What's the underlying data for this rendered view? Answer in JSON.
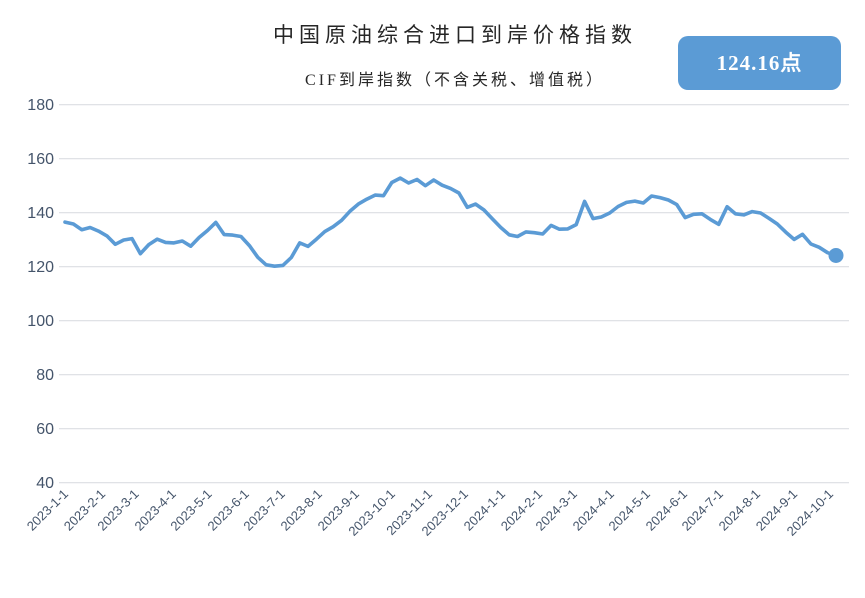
{
  "page": {
    "background": "#FFFFFF"
  },
  "chart_data": {
    "type": "line",
    "title": "中国原油综合进口到岸价格指数",
    "subtitle": "CIF到岸指数（不含关税、增值税）",
    "badge": {
      "label": "124.16点",
      "bg": "#5B9BD5",
      "text_color": "#FFFFFF"
    },
    "ylim": [
      40,
      180
    ],
    "y_ticks": [
      180,
      160,
      140,
      120,
      100,
      80,
      60,
      40
    ],
    "x_ticks": [
      "2023-1-1",
      "2023-2-1",
      "2023-3-1",
      "2023-4-1",
      "2023-5-1",
      "2023-6-1",
      "2023-7-1",
      "2023-8-1",
      "2023-9-1",
      "2023-10-1",
      "2023-11-1",
      "2023-12-1",
      "2024-1-1",
      "2024-2-1",
      "2024-3-1",
      "2024-4-1",
      "2024-5-1",
      "2024-6-1",
      "2024-7-1",
      "2024-8-1",
      "2024-9-1",
      "2024-10-1"
    ],
    "grid": "horizontal",
    "legend": "none",
    "colors": {
      "line": "#5B9BD5",
      "grid": "#DBDEE3",
      "tick_label": "#44546A",
      "title_text": "#262626"
    },
    "series": [
      {
        "name": "中国原油综合进口到岸价格指数",
        "color": "#5B9BD5",
        "start_date": "2023-01-01",
        "interval_days": 7,
        "end_marker": true,
        "last_value": 124.16,
        "values": [
          136.5,
          135.8,
          133.7,
          134.5,
          133.2,
          131.4,
          128.3,
          129.9,
          130.4,
          124.8,
          128.2,
          130.2,
          129.0,
          128.8,
          129.5,
          127.6,
          130.8,
          133.4,
          136.4,
          131.9,
          131.7,
          131.2,
          127.8,
          123.5,
          120.7,
          120.2,
          120.5,
          123.4,
          128.8,
          127.5,
          130.2,
          133.0,
          134.8,
          137.2,
          140.5,
          143.2,
          145.0,
          146.5,
          146.3,
          151.2,
          152.8,
          151.0,
          152.3,
          150.0,
          152.1,
          150.2,
          149.0,
          147.3,
          142.0,
          143.2,
          141.0,
          137.7,
          134.5,
          131.8,
          131.2,
          132.9,
          132.6,
          132.1,
          135.3,
          133.9,
          134.0,
          135.6,
          144.2,
          137.8,
          138.4,
          139.9,
          142.3,
          143.8,
          144.3,
          143.6,
          146.2,
          145.6,
          144.7,
          143.0,
          138.2,
          139.4,
          139.6,
          137.5,
          135.7,
          142.2,
          139.6,
          139.2,
          140.4,
          139.9,
          137.9,
          135.8,
          132.8,
          130.1,
          132.0,
          128.4,
          127.2,
          125.2,
          124.16
        ]
      }
    ]
  }
}
